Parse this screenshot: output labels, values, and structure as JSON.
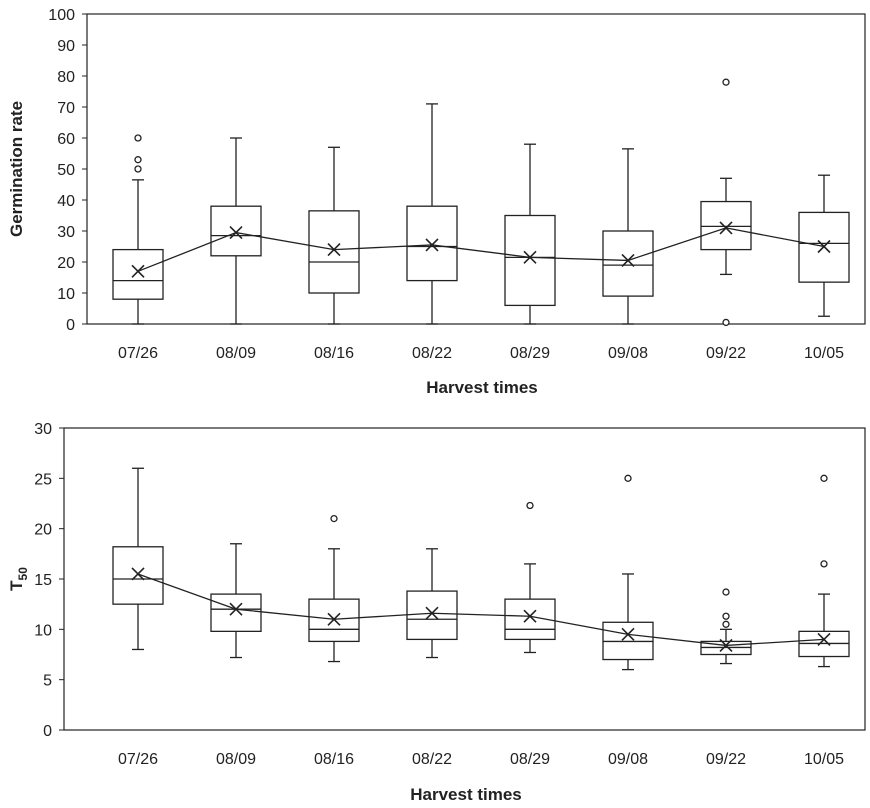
{
  "chart_data": [
    {
      "type": "box",
      "xlabel": "Harvest times",
      "ylabel": "Germination rate",
      "ylim": [
        0,
        100
      ],
      "yticks": [
        "0",
        "10",
        "20",
        "30",
        "40",
        "50",
        "60",
        "70",
        "80",
        "90",
        "100"
      ],
      "categories": [
        "07/26",
        "08/09",
        "08/16",
        "08/22",
        "08/29",
        "09/08",
        "09/22",
        "10/05"
      ],
      "boxes": [
        {
          "min": 0,
          "q1": 8,
          "median": 14,
          "q3": 24,
          "max": 46.5,
          "mean": 17,
          "outliers": [
            50,
            53,
            60
          ]
        },
        {
          "min": 0,
          "q1": 22,
          "median": 28.5,
          "q3": 38,
          "max": 60,
          "mean": 29.5,
          "outliers": []
        },
        {
          "min": 0,
          "q1": 10,
          "median": 20,
          "q3": 36.5,
          "max": 57,
          "mean": 24,
          "outliers": []
        },
        {
          "min": 0,
          "q1": 14,
          "median": 25,
          "q3": 38,
          "max": 71,
          "mean": 25.5,
          "outliers": []
        },
        {
          "min": 0,
          "q1": 6,
          "median": 21.5,
          "q3": 35,
          "max": 58,
          "mean": 21.5,
          "outliers": []
        },
        {
          "min": 0,
          "q1": 9,
          "median": 19,
          "q3": 30,
          "max": 56.5,
          "mean": 20.5,
          "outliers": []
        },
        {
          "min": 16,
          "q1": 24,
          "median": 31.5,
          "q3": 39.5,
          "max": 47,
          "mean": 31,
          "outliers": [
            0.5,
            78
          ]
        },
        {
          "min": 2.5,
          "q1": 13.5,
          "median": 26,
          "q3": 36,
          "max": 48,
          "mean": 25,
          "outliers": []
        }
      ]
    },
    {
      "type": "box",
      "xlabel": "Harvest times",
      "ylabel": "T",
      "ylabel_sub": "50",
      "ylim": [
        0,
        30
      ],
      "yticks": [
        "0",
        "5",
        "10",
        "15",
        "20",
        "25",
        "30"
      ],
      "categories": [
        "07/26",
        "08/09",
        "08/16",
        "08/22",
        "08/29",
        "09/08",
        "09/22",
        "10/05"
      ],
      "boxes": [
        {
          "min": 8,
          "q1": 12.5,
          "median": 15,
          "q3": 18.2,
          "max": 26,
          "mean": 15.5,
          "outliers": []
        },
        {
          "min": 7.2,
          "q1": 9.8,
          "median": 12,
          "q3": 13.5,
          "max": 18.5,
          "mean": 12,
          "outliers": []
        },
        {
          "min": 6.8,
          "q1": 8.8,
          "median": 10,
          "q3": 13,
          "max": 18,
          "mean": 11,
          "outliers": [
            21
          ]
        },
        {
          "min": 7.2,
          "q1": 9,
          "median": 11,
          "q3": 13.8,
          "max": 18,
          "mean": 11.6,
          "outliers": []
        },
        {
          "min": 7.7,
          "q1": 9,
          "median": 10,
          "q3": 13,
          "max": 16.5,
          "mean": 11.3,
          "outliers": [
            22.3
          ]
        },
        {
          "min": 6,
          "q1": 7,
          "median": 8.8,
          "q3": 10.7,
          "max": 15.5,
          "mean": 9.5,
          "outliers": [
            25
          ]
        },
        {
          "min": 6.6,
          "q1": 7.5,
          "median": 8.2,
          "q3": 8.8,
          "max": 10,
          "mean": 8.4,
          "outliers": [
            10.5,
            11.3,
            13.7
          ]
        },
        {
          "min": 6.3,
          "q1": 7.3,
          "median": 8.6,
          "q3": 9.8,
          "max": 13.5,
          "mean": 9,
          "outliers": [
            16.5,
            25
          ]
        }
      ]
    }
  ]
}
